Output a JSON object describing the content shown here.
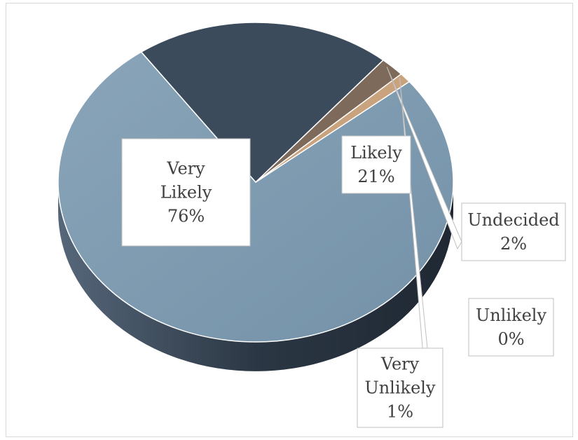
{
  "chart_data": {
    "type": "pie",
    "title": "",
    "legend": "none",
    "slices": [
      {
        "name": "Very Likely",
        "value": 76,
        "label": "76%",
        "color": "#7b99b0"
      },
      {
        "name": "Likely",
        "value": 21,
        "label": "21%",
        "color": "#3b4b5c"
      },
      {
        "name": "Undecided",
        "value": 2,
        "label": "2%",
        "color": "#7d6a5a"
      },
      {
        "name": "Very Unlikely",
        "value": 1,
        "label": "1%",
        "color": "#c9a27e"
      },
      {
        "name": "Unlikely",
        "value": 0,
        "label": "0%",
        "color": "#3a3026"
      }
    ]
  }
}
